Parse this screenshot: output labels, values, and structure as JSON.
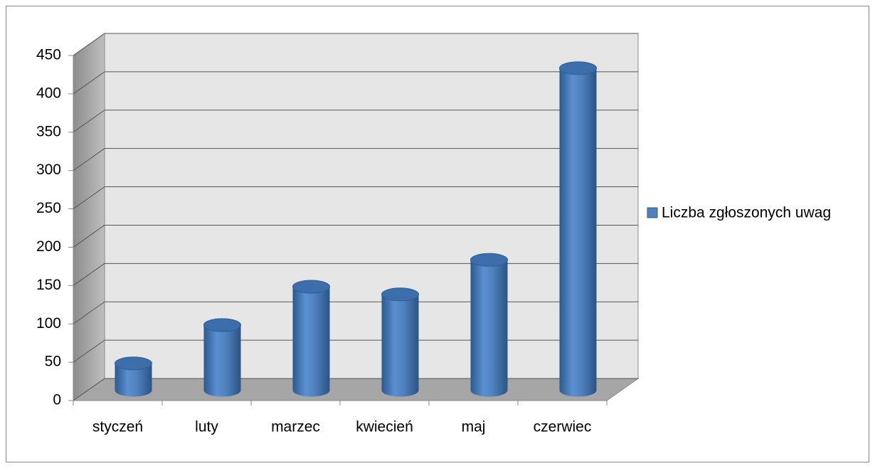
{
  "chart_data": {
    "type": "bar",
    "categories": [
      "styczeń",
      "luty",
      "marzec",
      "kwiecień",
      "maj",
      "czerwiec"
    ],
    "series": [
      {
        "name": "Liczba zgłoszonych uwag",
        "color": "#4f81bd",
        "values": [
          35,
          85,
          135,
          125,
          170,
          420
        ]
      }
    ],
    "ylim": [
      0,
      450
    ],
    "yticks": [
      0,
      50,
      100,
      150,
      200,
      250,
      300,
      350,
      400,
      450
    ],
    "grid": true,
    "legend": "right"
  }
}
